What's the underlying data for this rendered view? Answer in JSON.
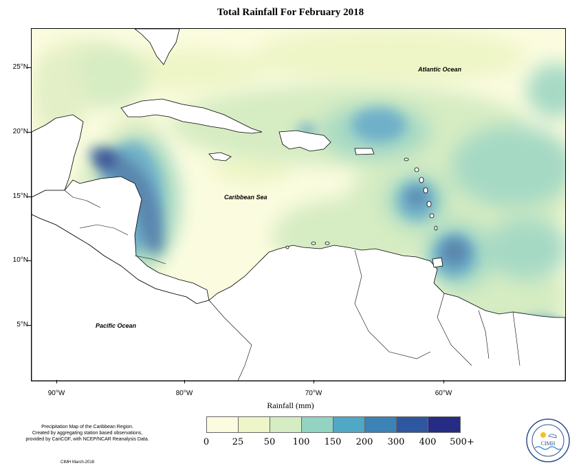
{
  "title": "Total Rainfall For February 2018",
  "map": {
    "latitude_labels": [
      "25°N",
      "20°N",
      "15°N",
      "10°N",
      "5°N"
    ],
    "longitude_labels": [
      "90°W",
      "80°W",
      "70°W",
      "60°W"
    ],
    "ocean_labels": {
      "atlantic": "Atlantic Ocean",
      "caribbean": "Caribbean Sea",
      "pacific": "Pacific Ocean"
    }
  },
  "legend": {
    "title": "Rainfall (mm)",
    "thresholds": [
      "0",
      "25",
      "50",
      "100",
      "150",
      "200",
      "300",
      "400",
      "500+"
    ],
    "colors": [
      "#fbfcdf",
      "#eef5c6",
      "#d6ecc2",
      "#92d4c1",
      "#4fa8c6",
      "#3b82b6",
      "#2f57a0",
      "#262b86",
      "#0d1b55"
    ]
  },
  "credit": {
    "line1": "Precipitation Map of the Caribbean Region.",
    "line2": "Created by aggregating station based observations,",
    "line3": "provided by CariCOF, with NCEP/NCAR Reanalysis Data."
  },
  "footer": "CIMH March-2018",
  "logo": {
    "name": "CIMH",
    "ring_text": "Caribbean Institute for Meteorology and Hydrology"
  }
}
